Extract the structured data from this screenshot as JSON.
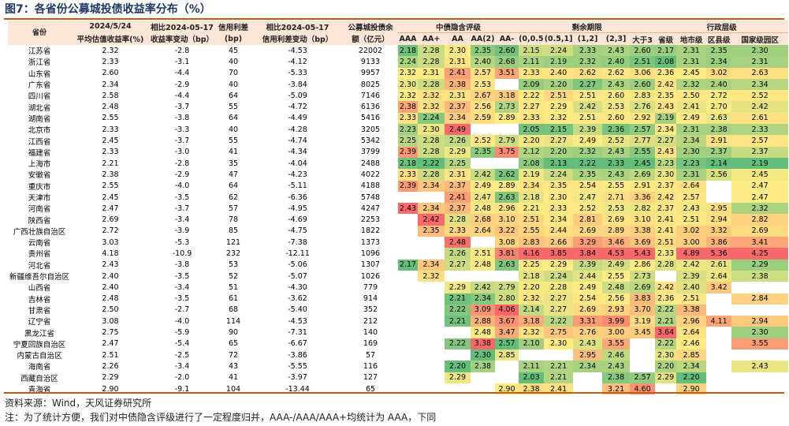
{
  "title": "图7：各省份公募城投债收益率分布（%）",
  "headers": {
    "province": "省份",
    "avg_line1": "2024/5/24",
    "avg_line2": "平均估值收益率(%)",
    "chg1_line1": "相比2024-05-17",
    "chg1_line2": "收益率变动（bp）",
    "spread_line1": "信用利差",
    "spread_line2": "(bp)",
    "chg2_line1": "相比2024-05-17",
    "chg2_line2": "信用利差变动（bp）",
    "bal_line1": "公募城投债余",
    "bal_line2": "额（亿元）",
    "group_rating": "中债隐含评级",
    "group_term": "剩余期限",
    "group_admin": "行政层级",
    "rating_cols": [
      "AAA",
      "AA+",
      "AA",
      "AA(2)",
      "AA-"
    ],
    "term_cols": [
      "(0,0.5]",
      "(0.5,1]",
      "(1,2]",
      "(2,3]",
      "大于3"
    ],
    "admin_cols": [
      "省级",
      "地市级",
      "区县级",
      "国家级园区"
    ]
  },
  "rows": [
    {
      "province": "江苏省",
      "avg": "2.32",
      "chg1": "-2.8",
      "spread": "45",
      "chg2": "-4.53",
      "bal": "22002",
      "rating": [
        "2.18",
        "2.28",
        "2.30",
        "2.35",
        "2.60"
      ],
      "term": [
        "2.15",
        "2.24",
        "2.33",
        "2.43",
        "2.60"
      ],
      "admin": [
        "2.17",
        "2.31",
        "2.35",
        "2.30"
      ]
    },
    {
      "province": "浙江省",
      "avg": "2.33",
      "chg1": "-3.1",
      "spread": "40",
      "chg2": "-4.12",
      "bal": "9133",
      "rating": [
        "2.24",
        "2.28",
        "2.31",
        "2.40",
        "2.68"
      ],
      "term": [
        "2.11",
        "2.19",
        "2.32",
        "2.40",
        "2.51"
      ],
      "admin": [
        "2.08",
        "2.31",
        "2.34",
        "2.31"
      ]
    },
    {
      "province": "山东省",
      "avg": "2.60",
      "chg1": "-4.4",
      "spread": "70",
      "chg2": "-5.33",
      "bal": "9957",
      "rating": [
        "2.32",
        "2.31",
        "2.41",
        "2.57",
        "3.51"
      ],
      "term": [
        "2.33",
        "2.40",
        "2.62",
        "2.62",
        "3.06"
      ],
      "admin": [
        "2.36",
        "2.45",
        "3.02",
        "2.63"
      ]
    },
    {
      "province": "广东省",
      "avg": "2.34",
      "chg1": "-2.9",
      "spread": "40",
      "chg2": "-3.84",
      "bal": "8025",
      "rating": [
        "2.30",
        "2.28",
        "2.38",
        "2.53",
        ""
      ],
      "term": [
        "2.09",
        "2.20",
        "2.27",
        "2.43",
        "2.60"
      ],
      "admin": [
        "2.42",
        "2.32",
        "2.40",
        "2.34"
      ]
    },
    {
      "province": "四川省",
      "avg": "2.58",
      "chg1": "-4.4",
      "spread": "64",
      "chg2": "-5.09",
      "bal": "7146",
      "rating": [
        "2.32",
        "2.32",
        "2.31",
        "2.67",
        "3.18"
      ],
      "term": [
        "2.22",
        "2.51",
        "2.51",
        "2.60",
        "2.83"
      ],
      "admin": [
        "2.35",
        "2.50",
        "2.72",
        "2.52"
      ]
    },
    {
      "province": "湖北省",
      "avg": "2.48",
      "chg1": "-3.7",
      "spread": "55",
      "chg2": "-4.72",
      "bal": "6136",
      "rating": [
        "2.38",
        "2.32",
        "2.37",
        "2.56",
        "2.73"
      ],
      "term": [
        "2.27",
        "2.29",
        "2.42",
        "2.53",
        "2.76"
      ],
      "admin": [
        "2.43",
        "2.41",
        "2.70",
        "2.42"
      ]
    },
    {
      "province": "湖南省",
      "avg": "2.55",
      "chg1": "-3.8",
      "spread": "64",
      "chg2": "-4.49",
      "bal": "5416",
      "rating": [
        "2.33",
        "2.24",
        "2.34",
        "2.59",
        "2.89"
      ],
      "term": [
        "2.33",
        "2.32",
        "2.51",
        "2.60",
        "2.92"
      ],
      "admin": [
        "2.19",
        "2.49",
        "2.63",
        "2.61"
      ]
    },
    {
      "province": "北京市",
      "avg": "2.33",
      "chg1": "-3.3",
      "spread": "40",
      "chg2": "-4.28",
      "bal": "3205",
      "rating": [
        "2.23",
        "2.30",
        "2.49",
        "",
        ""
      ],
      "term": [
        "2.05",
        "2.15",
        "2.39",
        "2.36",
        "2.57"
      ],
      "admin": [
        "2.34",
        "2.31",
        "2.38",
        "2.33"
      ]
    },
    {
      "province": "江西省",
      "avg": "2.45",
      "chg1": "-3.7",
      "spread": "55",
      "chg2": "-4.74",
      "bal": "5342",
      "rating": [
        "2.25",
        "2.28",
        "2.26",
        "2.52",
        "2.79"
      ],
      "term": [
        "2.20",
        "2.27",
        "2.49",
        "2.52",
        "2.77"
      ],
      "admin": [
        "2.27",
        "2.34",
        "2.91",
        "2.57"
      ]
    },
    {
      "province": "福建省",
      "avg": "2.33",
      "chg1": "-3.0",
      "spread": "41",
      "chg2": "-4.34",
      "bal": "3799",
      "rating": [
        "2.39",
        "2.28",
        "2.29",
        "2.35",
        "3.75"
      ],
      "term": [
        "2.12",
        "2.20",
        "2.32",
        "2.43",
        "2.55"
      ],
      "admin": [
        "2.43",
        "2.30",
        "2.37",
        "2.37"
      ]
    },
    {
      "province": "上海市",
      "avg": "2.21",
      "chg1": "-2.8",
      "spread": "35",
      "chg2": "-4.04",
      "bal": "2488",
      "rating": [
        "2.18",
        "2.22",
        "2.25",
        "",
        ""
      ],
      "term": [
        "2.08",
        "2.13",
        "2.22",
        "2.33",
        "2.45"
      ],
      "admin": [
        "2.23",
        "2.23",
        "2.14",
        "2.19"
      ]
    },
    {
      "province": "安徽省",
      "avg": "2.38",
      "chg1": "-2.9",
      "spread": "47",
      "chg2": "-4.23",
      "bal": "4022",
      "rating": [
        "2.33",
        "2.28",
        "2.31",
        "2.42",
        "2.62"
      ],
      "term": [
        "2.19",
        "2.24",
        "2.35",
        "2.43",
        "2.69"
      ],
      "admin": [
        "2.30",
        "2.31",
        "2.56",
        "2.45"
      ]
    },
    {
      "province": "重庆市",
      "avg": "2.55",
      "chg1": "-4.0",
      "spread": "64",
      "chg2": "-5.11",
      "bal": "4188",
      "rating": [
        "2.39",
        "2.34",
        "2.37",
        "2.49",
        "2.89"
      ],
      "term": [
        "2.34",
        "2.35",
        "2.54",
        "2.55",
        "2.91"
      ],
      "admin": [
        "2.37",
        "2.64",
        "",
        "2.47"
      ]
    },
    {
      "province": "天津市",
      "avg": "2.45",
      "chg1": "-3.5",
      "spread": "62",
      "chg2": "-6.36",
      "bal": "5748",
      "rating": [
        "",
        "",
        "2.41",
        "2.47",
        "2.63"
      ],
      "term": [
        "2.18",
        "2.30",
        "2.47",
        "2.71",
        "3.36"
      ],
      "admin": [
        "2.42",
        "2.57",
        "",
        "2.47"
      ]
    },
    {
      "province": "河南省",
      "avg": "2.47",
      "chg1": "-3.7",
      "spread": "57",
      "chg2": "-4.95",
      "bal": "4247",
      "rating": [
        "2.43",
        "2.34",
        "2.37",
        "2.48",
        "2.96"
      ],
      "term": [
        "2.21",
        "2.33",
        "2.52",
        "2.53",
        "2.82"
      ],
      "admin": [
        "2.37",
        "2.43",
        "2.95",
        "2.32"
      ]
    },
    {
      "province": "陕西省",
      "avg": "2.69",
      "chg1": "-3.4",
      "spread": "78",
      "chg2": "-4.69",
      "bal": "2253",
      "rating": [
        "",
        "2.42",
        "2.28",
        "2.68",
        "3.10"
      ],
      "term": [
        "2.51",
        "2.34",
        "2.81",
        "2.69",
        "3.10"
      ],
      "admin": [
        "2.41",
        "2.51",
        "2.94",
        "2.82"
      ]
    },
    {
      "province": "广西壮族自治区",
      "avg": "2.72",
      "chg1": "-3.9",
      "spread": "85",
      "chg2": "-4.75",
      "bal": "1822",
      "rating": [
        "",
        "2.35",
        "2.33",
        "2.64",
        "3.22"
      ],
      "term": [
        "2.55",
        "2.44",
        "2.69",
        "2.89",
        "3.38"
      ],
      "admin": [
        "2.41",
        "3.02",
        "3.32",
        "2.69"
      ]
    },
    {
      "province": "云南省",
      "avg": "3.03",
      "chg1": "-5.3",
      "spread": "121",
      "chg2": "-7.38",
      "bal": "1373",
      "rating": [
        "",
        "",
        "2.48",
        "",
        "3.08"
      ],
      "term": [
        "2.83",
        "2.66",
        "3.29",
        "3.46",
        "3.69"
      ],
      "admin": [
        "2.51",
        "3.00",
        "3.86",
        "3.41"
      ]
    },
    {
      "province": "贵州省",
      "avg": "4.18",
      "chg1": "-10.9",
      "spread": "232",
      "chg2": "-12.11",
      "bal": "1096",
      "rating": [
        "",
        "",
        "2.26",
        "2.51",
        "3.81"
      ],
      "term": [
        "4.16",
        "3.85",
        "3.84",
        "4.53",
        "5.43"
      ],
      "admin": [
        "2.33",
        "4.89",
        "5.36",
        "4.25"
      ]
    },
    {
      "province": "河北省",
      "avg": "2.43",
      "chg1": "-3.8",
      "spread": "53",
      "chg2": "-5.06",
      "bal": "1307",
      "rating": [
        "2.17",
        "2.34",
        "2.27",
        "2.48",
        "2.63"
      ],
      "term": [
        "2.25",
        "2.29",
        "2.39",
        "2.49",
        "2.86"
      ],
      "admin": [
        "2.28",
        "2.42",
        "2.61",
        "2.29"
      ]
    },
    {
      "province": "新疆维吾尔自治区",
      "avg": "2.40",
      "chg1": "-3.5",
      "spread": "52",
      "chg2": "-5.07",
      "bal": "1026",
      "rating": [
        "",
        "2.32",
        "",
        "",
        ""
      ],
      "term": [
        "2.18",
        "2.24",
        "2.44",
        "2.55",
        "2.73"
      ],
      "admin": [
        "",
        "2.39",
        "2.64",
        "2.38"
      ]
    },
    {
      "province": "山西省",
      "avg": "2.40",
      "chg1": "-3.4",
      "spread": "51",
      "chg2": "-4.30",
      "bal": "779",
      "rating": [
        "",
        "",
        "2.29",
        "2.42",
        "2.79"
      ],
      "term": [
        "2.20",
        "2.28",
        "2.49",
        "2.48",
        "2.69"
      ],
      "admin": [
        "2.42",
        "2.40",
        "3.42",
        ""
      ]
    },
    {
      "province": "吉林省",
      "avg": "2.48",
      "chg1": "-3.5",
      "spread": "61",
      "chg2": "-3.62",
      "bal": "914",
      "rating": [
        "",
        "",
        "2.21",
        "2.34",
        "2.80"
      ],
      "term": [
        "2.32",
        "2.27",
        "2.54",
        "2.56",
        "3.83"
      ],
      "admin": [
        "2.36",
        "2.51",
        "",
        "2.84"
      ]
    },
    {
      "province": "甘肃省",
      "avg": "2.50",
      "chg1": "-2.7",
      "spread": "68",
      "chg2": "-5.40",
      "bal": "352",
      "rating": [
        "",
        "",
        "2.22",
        "3.09",
        "4.06"
      ],
      "term": [
        "2.14",
        "2.27",
        "2.69",
        "2.93",
        "3.70"
      ],
      "admin": [
        "2.22",
        "3.38",
        "",
        ""
      ]
    },
    {
      "province": "辽宁省",
      "avg": "3.08",
      "chg1": "-4.0",
      "spread": "114",
      "chg2": "-4.53",
      "bal": "212",
      "rating": [
        "",
        "",
        "2.21",
        "2.88",
        "3.67"
      ],
      "term": [
        "3.18",
        "2.22",
        "3.31",
        "3.99",
        "3.19"
      ],
      "admin": [
        "2.21",
        "2.96",
        "4.11",
        "2.94"
      ]
    },
    {
      "province": "黑龙江省",
      "avg": "2.75",
      "chg1": "-5.9",
      "spread": "90",
      "chg2": "-7.31",
      "bal": "140",
      "rating": [
        "",
        "",
        "",
        "2.48",
        "3.47"
      ],
      "term": [
        "2.32",
        "2.75",
        "2.76",
        "3.00",
        "3.45"
      ],
      "admin": [
        "3.64",
        "2.64",
        "",
        "2.30"
      ]
    },
    {
      "province": "宁夏回族自治区",
      "avg": "2.47",
      "chg1": "-5.4",
      "spread": "65",
      "chg2": "-6.67",
      "bal": "169",
      "rating": [
        "",
        "",
        "2.22",
        "3.38",
        "2.57"
      ],
      "term": [
        "2.10",
        "2.30",
        "2.43",
        "3.55",
        ""
      ],
      "admin": [
        "2.22",
        "2.46",
        "",
        "3.55"
      ]
    },
    {
      "province": "内蒙古自治区",
      "avg": "2.51",
      "chg1": "-2.5",
      "spread": "72",
      "chg2": "-3.86",
      "bal": "57",
      "rating": [
        "",
        "",
        "",
        "2.30",
        "2.85"
      ],
      "term": [
        "",
        "",
        "2.95",
        "2.46",
        ""
      ],
      "admin": [
        "2.30",
        "2.85",
        "",
        ""
      ]
    },
    {
      "province": "海南省",
      "avg": "2.26",
      "chg1": "-3.4",
      "spread": "43",
      "chg2": "-5.55",
      "bal": "116",
      "rating": [
        "",
        "",
        "2.20",
        "2.38",
        ""
      ],
      "term": [
        "2.11",
        "2.21",
        "2.34",
        "2.43",
        ""
      ],
      "admin": [
        "2.20",
        "2.34",
        "",
        "2.43"
      ]
    },
    {
      "province": "西藏自治区",
      "avg": "2.29",
      "chg1": "-2.0",
      "spread": "41",
      "chg2": "-3.97",
      "bal": "127",
      "rating": [
        "",
        "",
        "2.29",
        "",
        ""
      ],
      "term": [
        "2.03",
        "2.21",
        "",
        "2.38",
        "2.57"
      ],
      "admin": [
        "2.29",
        "2.20",
        "",
        ""
      ]
    },
    {
      "province": "青海省",
      "avg": "2.90",
      "chg1": "-9.1",
      "spread": "104",
      "chg2": "-13.44",
      "bal": "65",
      "rating": [
        "",
        "",
        "",
        "",
        "2.90"
      ],
      "term": [
        "2.38",
        "2.41",
        "",
        "3.21",
        "4.60"
      ],
      "admin": [
        "",
        "2.90",
        "",
        ""
      ]
    }
  ],
  "footer": {
    "source": "资料来源：Wind，天风证券研究所",
    "note": "注：为了统计方便，我们对中债隐含评级进行了一定程度归并，AAA-/AAA/AAA+均统计为 AAA，下同"
  },
  "colors": {
    "title": "#1f3864",
    "rule": "#c55a11",
    "header_bg": "#fbe5d6",
    "heat_low": "#63be7b",
    "heat_mid": "#ffeb84",
    "heat_high": "#f8696b"
  }
}
